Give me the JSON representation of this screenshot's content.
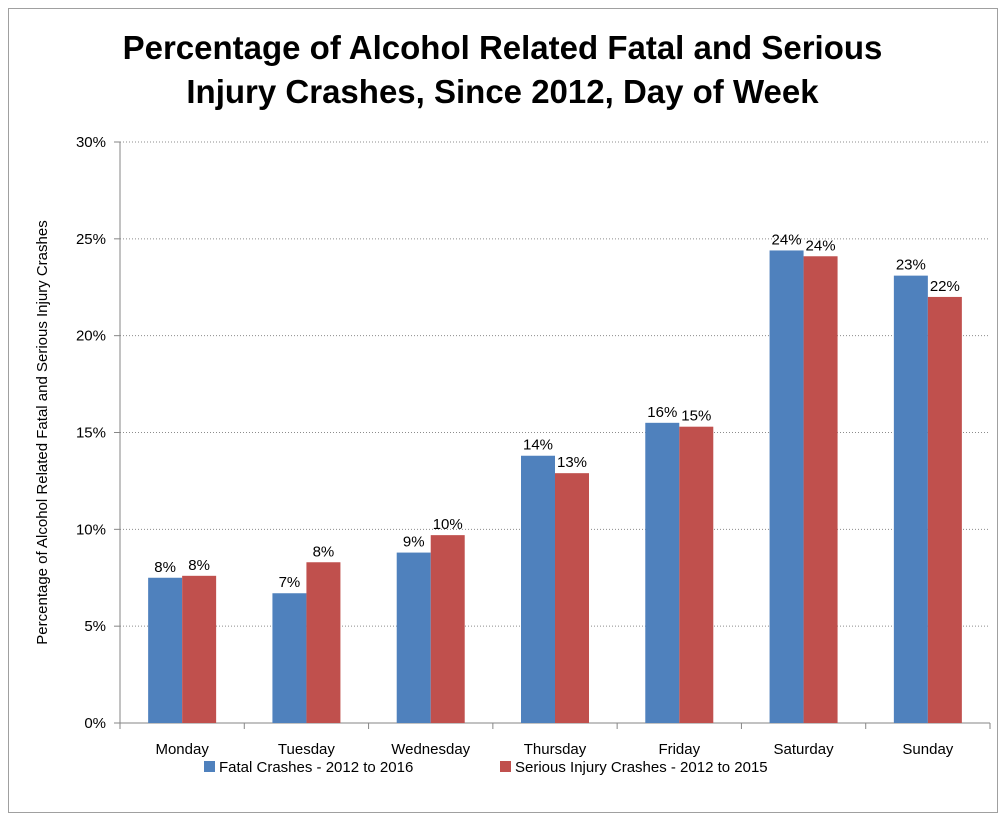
{
  "chart_data": {
    "type": "bar",
    "title": [
      "Percentage of Alcohol Related Fatal and Serious",
      "Injury Crashes, Since 2012, Day of Week"
    ],
    "ylabel": "Percentage of Alcohol Related Fatal and Serious Injury Crashes",
    "xlabel": "",
    "categories": [
      "Monday",
      "Tuesday",
      "Wednesday",
      "Thursday",
      "Friday",
      "Saturday",
      "Sunday"
    ],
    "ylim": [
      0,
      30
    ],
    "yticks": [
      "0%",
      "5%",
      "10%",
      "15%",
      "20%",
      "25%",
      "30%"
    ],
    "grid": "horizontal dotted",
    "legend_position": "bottom",
    "series": [
      {
        "name": "Fatal Crashes - 2012 to 2016",
        "color": "#4f81bd",
        "values": [
          7.5,
          6.7,
          8.8,
          13.8,
          15.5,
          24.4,
          23.1
        ],
        "labels": [
          "8%",
          "7%",
          "9%",
          "14%",
          "16%",
          "24%",
          "23%"
        ]
      },
      {
        "name": "Serious Injury Crashes - 2012 to 2015",
        "color": "#c0504d",
        "values": [
          7.6,
          8.3,
          9.7,
          12.9,
          15.3,
          24.1,
          22.0
        ],
        "labels": [
          "8%",
          "8%",
          "10%",
          "13%",
          "15%",
          "24%",
          "22%"
        ]
      }
    ]
  }
}
